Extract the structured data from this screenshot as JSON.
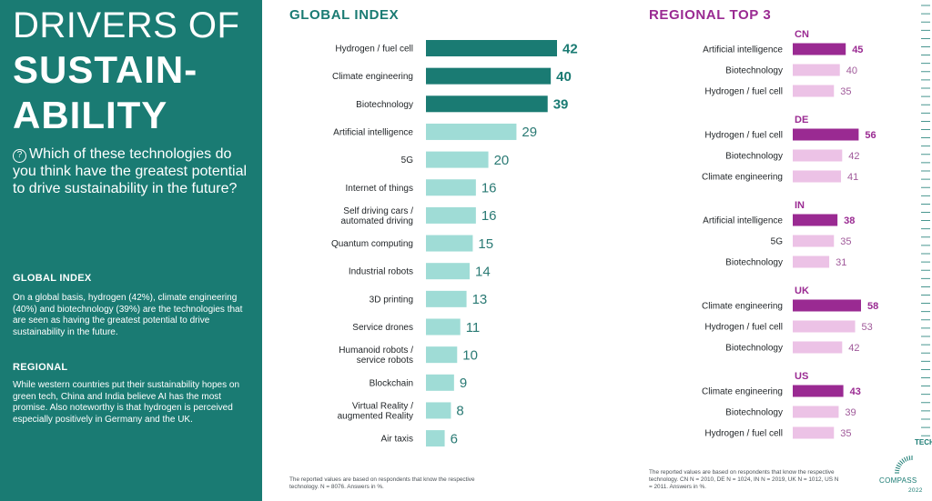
{
  "panel": {
    "title_line1": "DRIVERS OF",
    "title_line2": "SUSTAIN-",
    "title_line3": "ABILITY",
    "question_icon": "?",
    "question": "Which of these technologies do you think have the greatest potential to drive sustainability in the future?",
    "global_head": "GLOBAL INDEX",
    "global_body": "On a global basis, hydrogen (42%), climate engineering (40%) and biotechnology (39%) are the technologies that are seen as having the greatest potential to drive sustainability in the future.",
    "regional_head": "REGIONAL",
    "regional_body": "While western countries put their sustainability hopes on green tech, China and India believe AI has the most promise. Also noteworthy is that hydrogen is perceived especially positively in Germany and the UK."
  },
  "global_footnote": "The reported values are based on respondents that know the respective technology. N = 8076. Answers in %.",
  "regional_footnote": "The reported values are based on respondents that know the respective technology. CN N = 2010, DE N = 1024, IN N = 2019, UK N = 1012, US N = 2011. Answers in %.",
  "logo": {
    "tech": "TECH",
    "compass": "COMPASS",
    "year": "2022"
  },
  "colors": {
    "teal_dark": "#1a7b73",
    "teal_light": "#9fdcd6",
    "purple_dark": "#9a2a92",
    "purple_light": "#ecc2e6"
  },
  "chart_data": [
    {
      "type": "bar",
      "orientation": "horizontal",
      "title": "GLOBAL INDEX",
      "categories": [
        "Hydrogen / fuel cell",
        "Climate engineering",
        "Biotechnology",
        "Artificial intelligence",
        "5G",
        "Internet of things",
        "Self driving cars / automated driving",
        "Quantum computing",
        "Industrial robots",
        "3D printing",
        "Service drones",
        "Humanoid robots / service robots",
        "Blockchain",
        "Virtual Reality / augmented Reality",
        "Air taxis"
      ],
      "values": [
        42,
        40,
        39,
        29,
        20,
        16,
        16,
        15,
        14,
        13,
        11,
        10,
        9,
        8,
        6
      ],
      "highlight_top": 3,
      "unit": "%"
    },
    {
      "type": "bar",
      "orientation": "horizontal",
      "title": "REGIONAL TOP 3",
      "groups": [
        {
          "name": "CN",
          "categories": [
            "Artificial intelligence",
            "Biotechnology",
            "Hydrogen / fuel cell"
          ],
          "values": [
            45,
            40,
            35
          ]
        },
        {
          "name": "DE",
          "categories": [
            "Hydrogen / fuel cell",
            "Biotechnology",
            "Climate engineering"
          ],
          "values": [
            56,
            42,
            41
          ]
        },
        {
          "name": "IN",
          "categories": [
            "Artificial intelligence",
            "5G",
            "Biotechnology"
          ],
          "values": [
            38,
            35,
            31
          ]
        },
        {
          "name": "UK",
          "categories": [
            "Climate engineering",
            "Hydrogen / fuel cell",
            "Biotechnology"
          ],
          "values": [
            58,
            53,
            42
          ]
        },
        {
          "name": "US",
          "categories": [
            "Climate engineering",
            "Biotechnology",
            "Hydrogen / fuel cell"
          ],
          "values": [
            43,
            39,
            35
          ]
        }
      ],
      "unit": "%"
    }
  ]
}
